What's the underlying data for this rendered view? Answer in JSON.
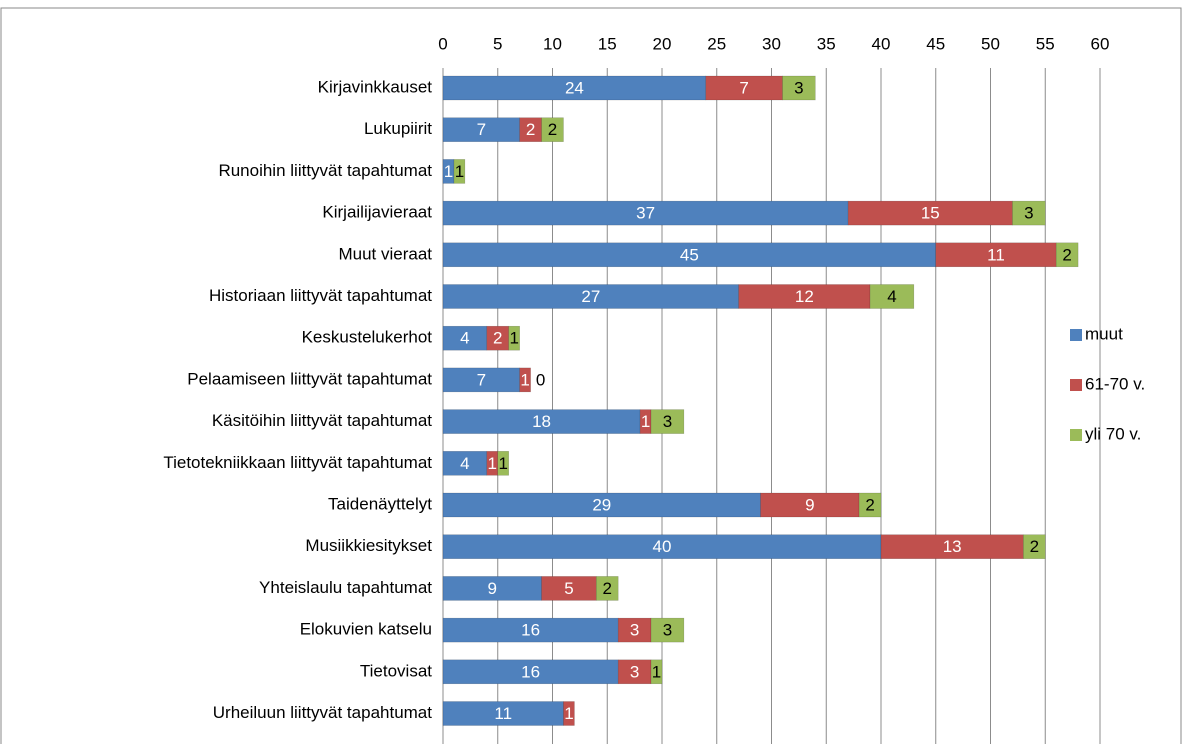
{
  "chart_data": {
    "type": "stacked-barh",
    "categories": [
      "Kirjavinkkauset",
      "Lukupiirit",
      "Runoihin liittyvät tapahtumat",
      "Kirjailijavieraat",
      "Muut vieraat",
      "Historiaan liittyvät tapahtumat",
      "Keskustelukerhot",
      "Pelaamiseen liittyvät tapahtumat",
      "Käsitöihin liittyvät tapahtumat ",
      "Tietotekniikkaan liittyvät tapahtumat",
      "Taidenäyttelyt",
      "Musiikkiesitykset",
      "Yhteislaulu tapahtumat",
      "Elokuvien katselu",
      "Tietovisat",
      "Urheiluun liittyvät tapahtumat"
    ],
    "series": [
      {
        "name": "muut",
        "color": "#4f81bd",
        "values": [
          24,
          7,
          1,
          37,
          45,
          27,
          4,
          7,
          18,
          4,
          29,
          40,
          9,
          16,
          16,
          11
        ]
      },
      {
        "name": "61-70 v.",
        "color": "#c0504d",
        "values": [
          7,
          2,
          null,
          15,
          11,
          12,
          2,
          1,
          1,
          1,
          9,
          13,
          5,
          3,
          3,
          1
        ]
      },
      {
        "name": "yli 70 v.",
        "color": "#9bbb59",
        "values": [
          3,
          2,
          1,
          3,
          2,
          4,
          1,
          0,
          3,
          1,
          2,
          2,
          2,
          3,
          1,
          null
        ]
      }
    ],
    "xlim": [
      0,
      60
    ],
    "xticks": [
      0,
      5,
      10,
      15,
      20,
      25,
      30,
      35,
      40,
      45,
      50,
      55,
      60
    ],
    "grid": true,
    "legend": "right"
  }
}
